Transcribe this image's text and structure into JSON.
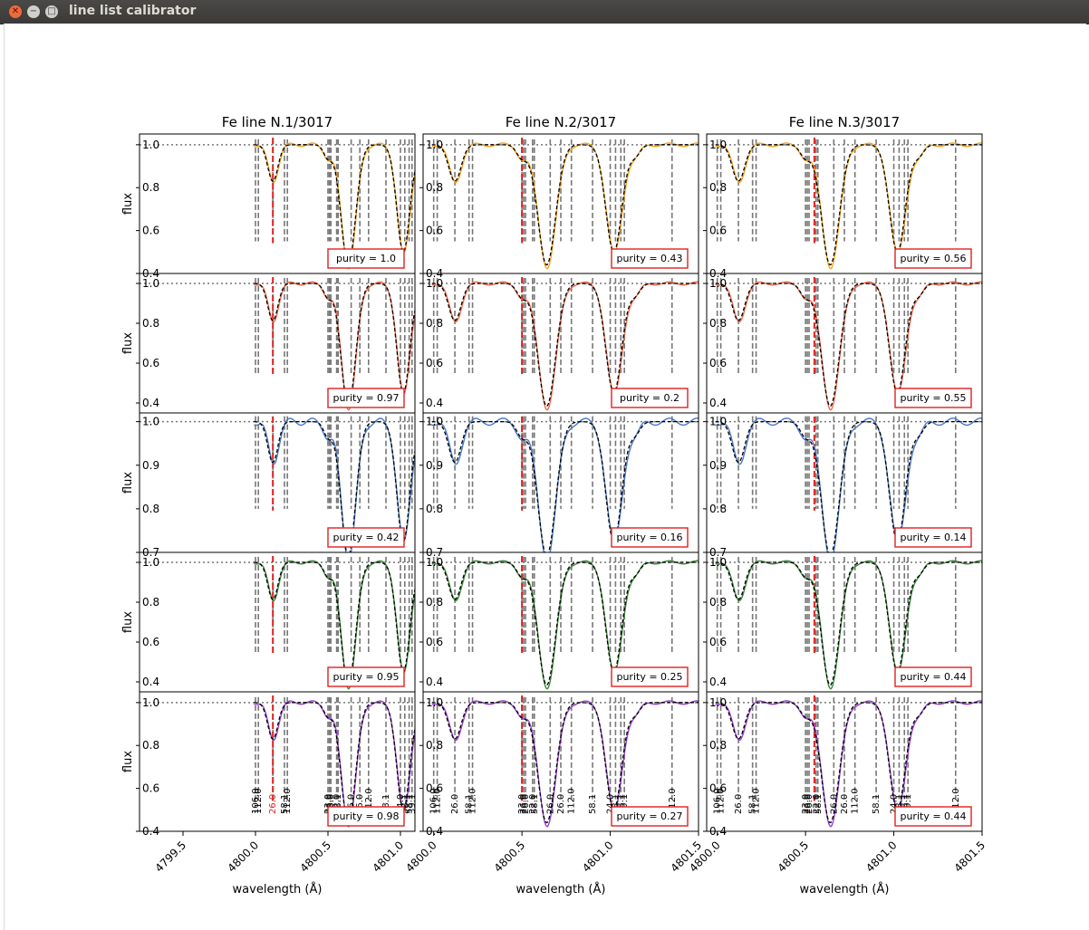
{
  "window": {
    "title": "line list calibrator",
    "close_icon": "close-icon",
    "minimize_icon": "minimize-icon",
    "maximize_icon": "maximize-icon"
  },
  "chart_data": {
    "type": "line",
    "layout": {
      "rows": 5,
      "cols": 3
    },
    "ylabel": "flux",
    "xlabel": "wavelength (Å)",
    "columns": [
      {
        "title": "Fe line N.1/3017",
        "xlim": [
          4799.2,
          4801.1
        ],
        "xticks": [
          "4799.5",
          "4800.0",
          "4800.5",
          "4801.0"
        ],
        "target_wl": 4800.12
      },
      {
        "title": "Fe line N.2/3017",
        "xlim": [
          4799.94,
          4801.5
        ],
        "xticks": [
          "4800.0",
          "4800.5",
          "4801.0",
          "4801.5"
        ],
        "target_wl": 4800.5
      },
      {
        "title": "Fe line N.3/3017",
        "xlim": [
          4799.94,
          4801.5
        ],
        "xticks": [
          "4800.0",
          "4800.5",
          "4801.0",
          "4801.5"
        ],
        "target_wl": 4800.55
      }
    ],
    "rows": [
      {
        "color": "#f5a623",
        "ylim": [
          0.4,
          1.05
        ],
        "yticks": [
          "0.4",
          "0.6",
          "0.8",
          "1.0"
        ],
        "purity": [
          "purity = 1.0",
          "purity = 0.43",
          "purity = 0.56"
        ]
      },
      {
        "color": "#f06a4a",
        "ylim": [
          0.35,
          1.05
        ],
        "yticks": [
          "0.4",
          "0.6",
          "0.8",
          "1.0"
        ],
        "purity": [
          "purity = 0.97",
          "purity = 0.2",
          "purity = 0.55"
        ]
      },
      {
        "color": "#4a78c8",
        "ylim": [
          0.7,
          1.02
        ],
        "yticks": [
          "0.7",
          "0.8",
          "0.9",
          "1.0"
        ],
        "purity": [
          "purity = 0.42",
          "purity = 0.16",
          "purity = 0.14"
        ]
      },
      {
        "color": "#3a8a3a",
        "ylim": [
          0.35,
          1.05
        ],
        "yticks": [
          "0.4",
          "0.6",
          "0.8",
          "1.0"
        ],
        "purity": [
          "purity = 0.95",
          "purity = 0.25",
          "purity = 0.44"
        ]
      },
      {
        "color": "#9a40d0",
        "ylim": [
          0.4,
          1.05
        ],
        "yticks": [
          "0.4",
          "0.6",
          "0.8",
          "1.0"
        ],
        "purity": [
          "purity = 0.98",
          "purity = 0.27",
          "purity = 0.44"
        ]
      }
    ],
    "line_markers": [
      {
        "wl": 4800.0,
        "label": "106.0"
      },
      {
        "wl": 4800.02,
        "label": "112.0"
      },
      {
        "wl": 4800.12,
        "label": "26.0"
      },
      {
        "wl": 4800.2,
        "label": "58.1"
      },
      {
        "wl": 4800.22,
        "label": "112.0"
      },
      {
        "wl": 4800.5,
        "label": "23.0"
      },
      {
        "wl": 4800.51,
        "label": "26.0"
      },
      {
        "wl": 4800.52,
        "label": "26.0"
      },
      {
        "wl": 4800.56,
        "label": "22.0"
      },
      {
        "wl": 4800.57,
        "label": "58.1"
      },
      {
        "wl": 4800.66,
        "label": "26.0"
      },
      {
        "wl": 4800.72,
        "label": "26.0"
      },
      {
        "wl": 4800.78,
        "label": "112.0"
      },
      {
        "wl": 4800.9,
        "label": "58.1"
      },
      {
        "wl": 4801.0,
        "label": "24.0"
      },
      {
        "wl": 4801.03,
        "label": "58.1"
      },
      {
        "wl": 4801.06,
        "label": "58.1"
      },
      {
        "wl": 4801.08,
        "label": "39.1"
      },
      {
        "wl": 4801.35,
        "label": "112.0"
      }
    ],
    "spectrum": {
      "continuum": 1.0,
      "lines": [
        {
          "wl": 4800.12,
          "depth": 0.17,
          "width": 0.035
        },
        {
          "wl": 4800.64,
          "depth": 0.56,
          "width": 0.05
        },
        {
          "wl": 4801.02,
          "depth": 0.5,
          "width": 0.045
        },
        {
          "wl": 4800.5,
          "depth": 0.06,
          "width": 0.03
        },
        {
          "wl": 4801.14,
          "depth": 0.05,
          "width": 0.03
        }
      ]
    }
  }
}
